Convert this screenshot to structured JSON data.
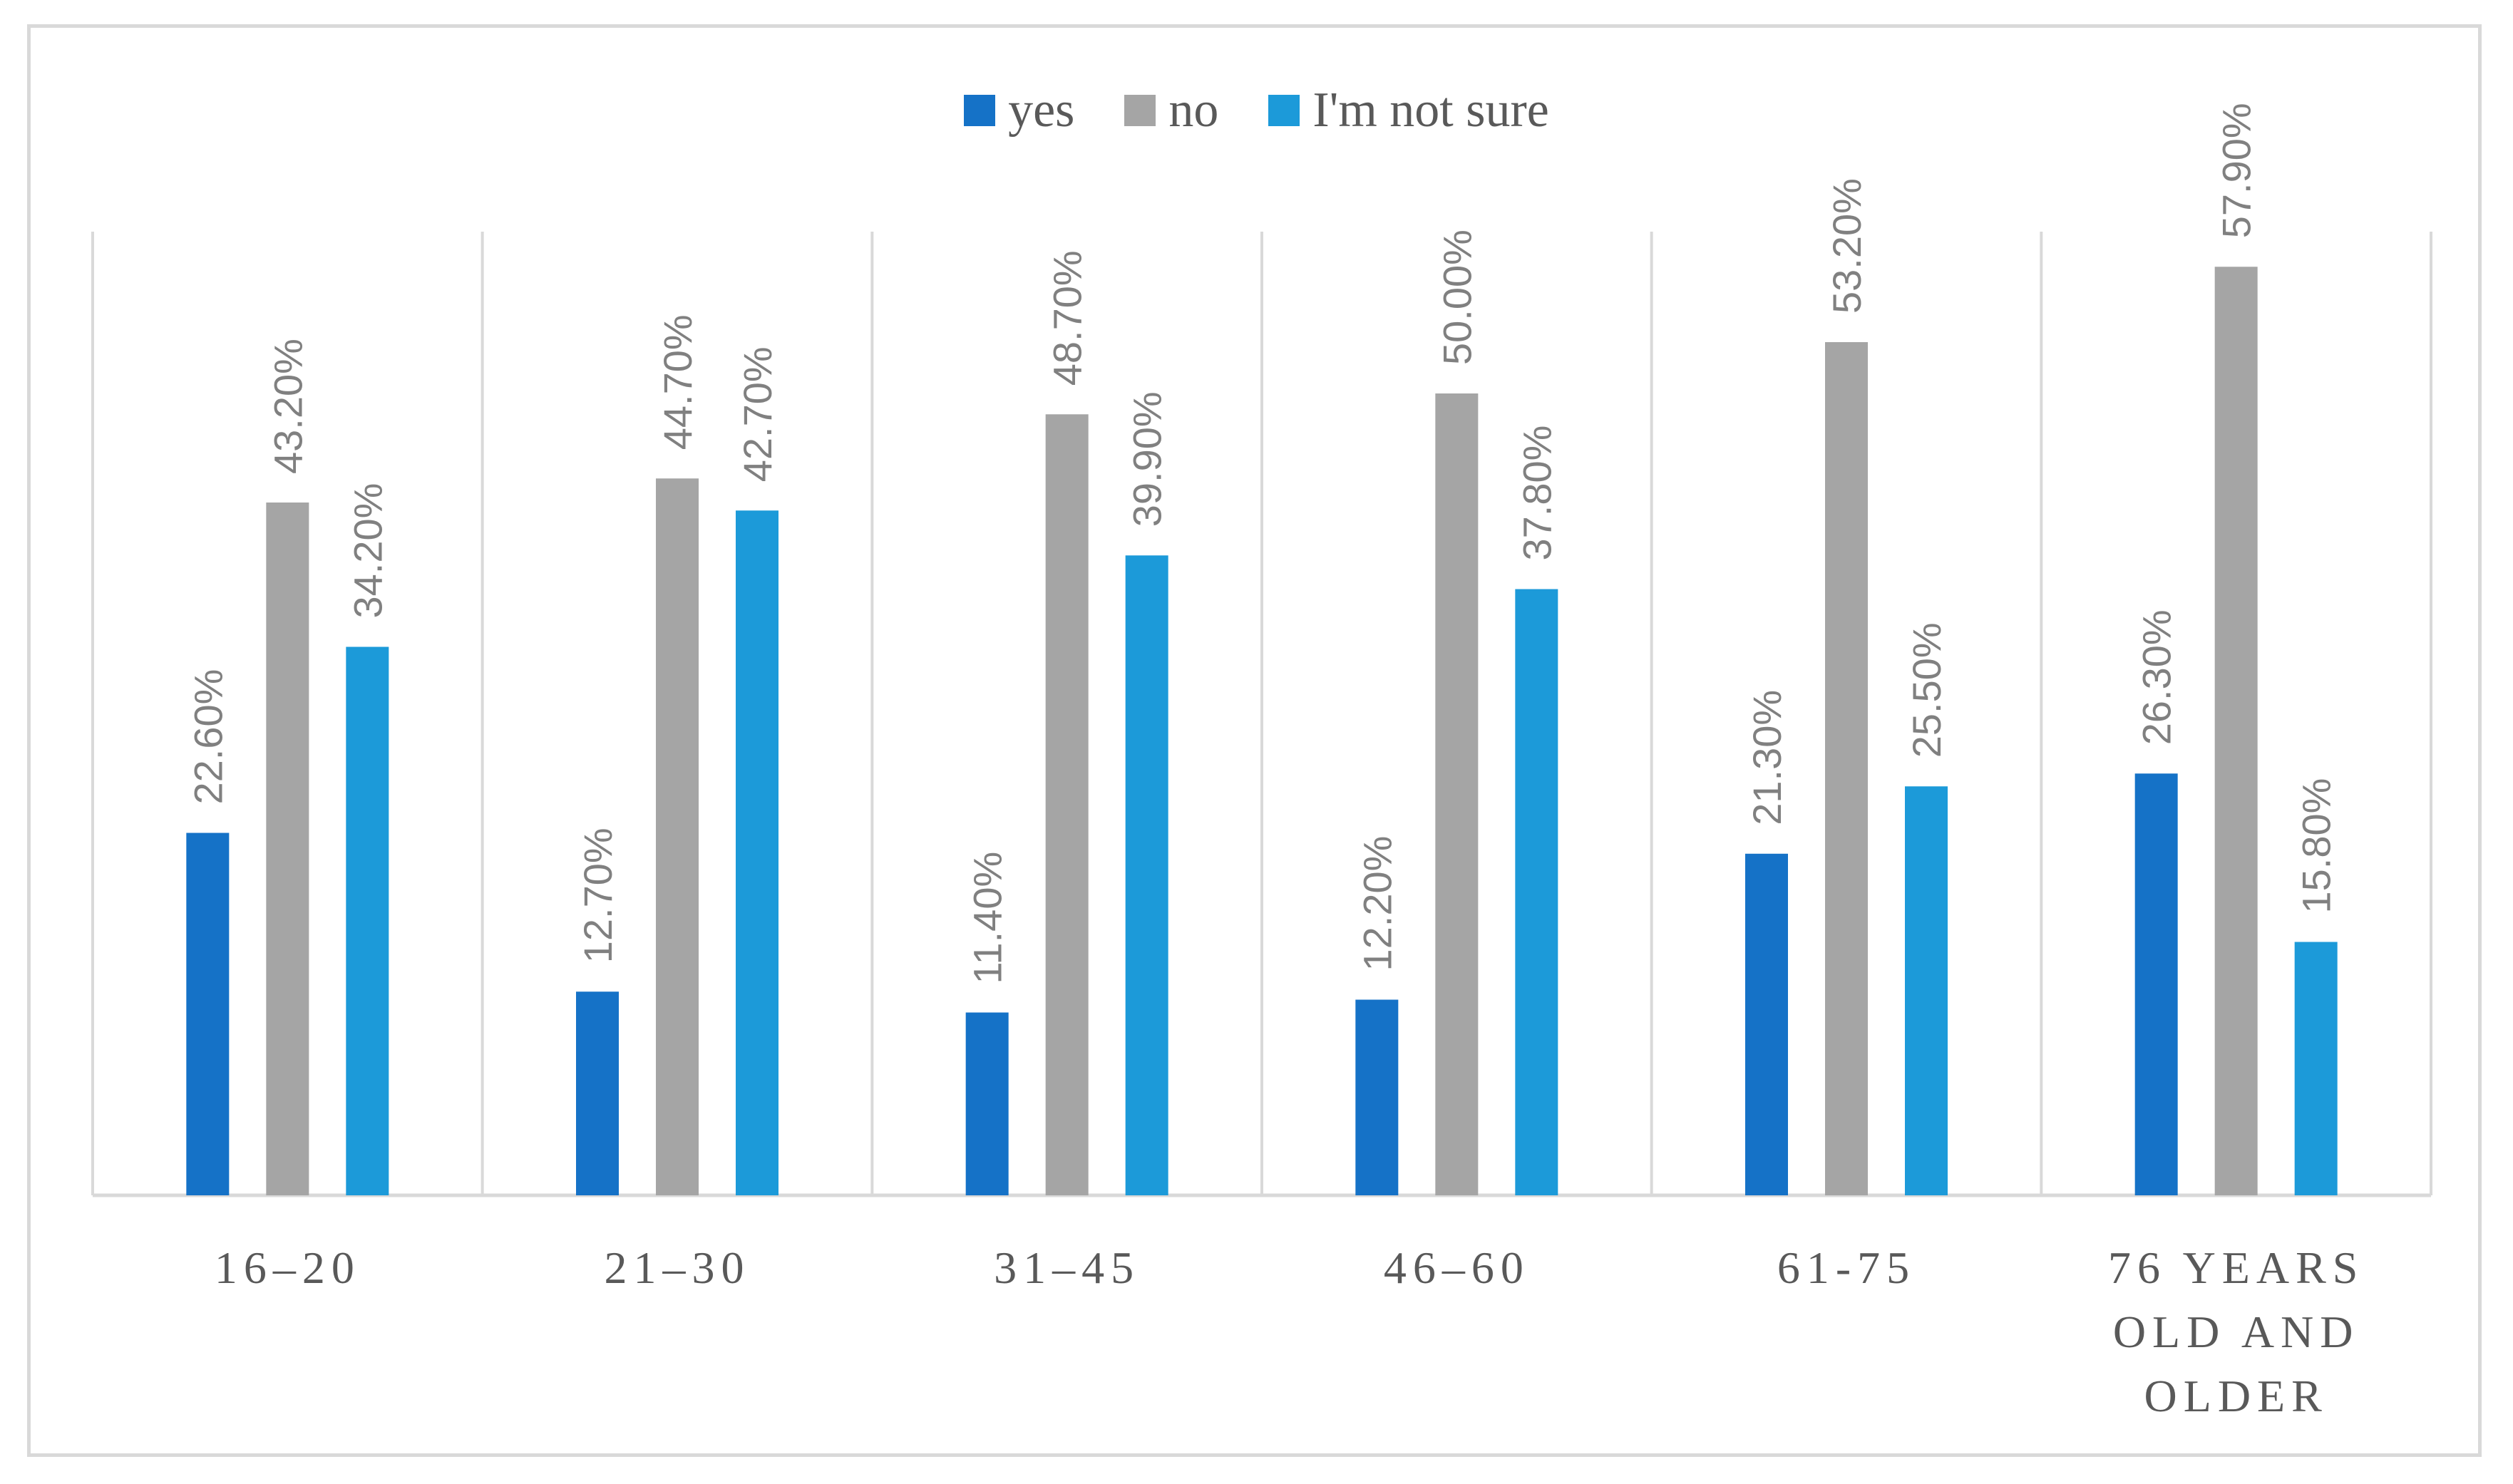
{
  "chart_data": {
    "type": "bar",
    "title": "",
    "xlabel": "",
    "ylabel": "",
    "ylim": [
      0,
      60
    ],
    "grid": false,
    "legend_position": "top",
    "categories": [
      "16–20",
      "21–30",
      "31–45",
      "46–60",
      "61-75",
      "76 YEARS OLD AND OLDER"
    ],
    "category_lines": [
      [
        "16–20"
      ],
      [
        "21–30"
      ],
      [
        "31–45"
      ],
      [
        "46–60"
      ],
      [
        "61-75"
      ],
      [
        "76 YEARS",
        "OLD AND",
        "OLDER"
      ]
    ],
    "series": [
      {
        "name": "yes",
        "color": "#1572c7",
        "values": [
          22.6,
          12.7,
          11.4,
          12.2,
          21.3,
          26.3
        ],
        "labels": [
          "22.60%",
          "12.70%",
          "11.40%",
          "12.20%",
          "21.30%",
          "26.30%"
        ]
      },
      {
        "name": "no",
        "color": "#a5a5a5",
        "values": [
          43.2,
          44.7,
          48.7,
          50.0,
          53.2,
          57.9
        ],
        "labels": [
          "43.20%",
          "44.70%",
          "48.70%",
          "50.00%",
          "53.20%",
          "57.90%"
        ]
      },
      {
        "name": "I'm not sure",
        "color": "#1c9ad9",
        "values": [
          34.2,
          42.7,
          39.9,
          37.8,
          25.5,
          15.8
        ],
        "labels": [
          "34.20%",
          "42.70%",
          "39.90%",
          "37.80%",
          "25.50%",
          "15.80%"
        ]
      }
    ]
  }
}
